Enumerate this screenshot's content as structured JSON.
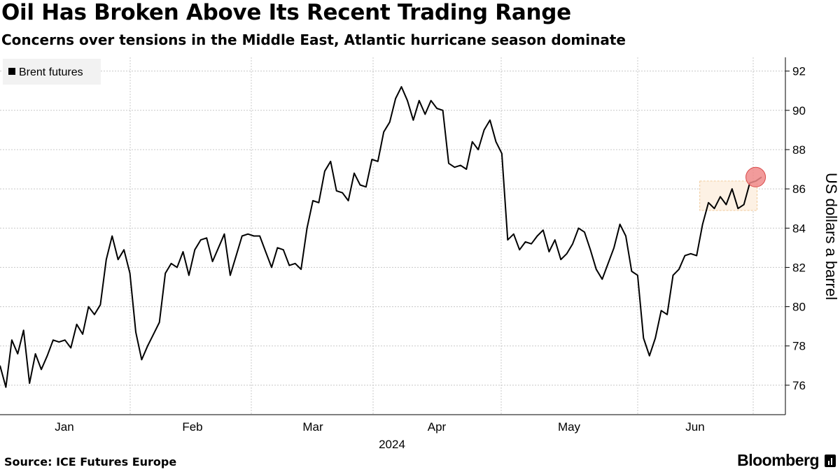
{
  "header": {
    "title": "Oil Has Broken Above Its Recent Trading Range",
    "subtitle": "Concerns over tensions in the Middle East, Atlantic hurricane season dominate"
  },
  "footer": {
    "source": "Source: ICE Futures Europe",
    "brand": "Bloomberg"
  },
  "colors": {
    "line": "#000000",
    "grid": "#c8c8c8",
    "highlight_fill": "#fdf1e4",
    "highlight_border": "#f0c99a",
    "marker_fill": "#f08a8a",
    "marker_stroke": "#d94a4a",
    "legend_bg": "#f2f2f2"
  },
  "chart_data": {
    "type": "line",
    "xlabel": "2024",
    "ylabel": "US dollars a barrel",
    "ylim": [
      74.5,
      92.7
    ],
    "y_ticks": [
      76,
      78,
      80,
      82,
      84,
      86,
      88,
      90,
      92
    ],
    "y_tick_labels": [
      "76",
      "78",
      "80",
      "82",
      "84",
      "86",
      "88",
      "90",
      "92"
    ],
    "x_tick_labels": [
      "Jan",
      "Feb",
      "Mar",
      "Apr",
      "May",
      "Jun"
    ],
    "legend": [
      {
        "label": "Brent futures",
        "color": "#000000"
      }
    ],
    "grid": true,
    "legend_position": "top-left",
    "series": [
      {
        "name": "Brent futures",
        "values": [
          77.0,
          75.9,
          78.3,
          77.6,
          78.8,
          76.1,
          77.6,
          76.8,
          77.5,
          78.3,
          78.2,
          78.3,
          77.9,
          79.1,
          78.6,
          80.0,
          79.6,
          80.1,
          82.4,
          83.6,
          82.4,
          82.9,
          81.7,
          78.7,
          77.3,
          78.0,
          78.6,
          79.2,
          81.7,
          82.2,
          82.0,
          82.8,
          81.6,
          82.9,
          83.4,
          83.5,
          82.3,
          83.0,
          83.7,
          81.6,
          82.6,
          83.6,
          83.7,
          83.6,
          83.6,
          82.8,
          82.0,
          83.0,
          82.9,
          82.1,
          82.2,
          81.9,
          84.0,
          85.4,
          85.3,
          86.9,
          87.4,
          85.9,
          85.8,
          85.4,
          86.8,
          86.2,
          86.1,
          87.5,
          87.4,
          88.9,
          89.4,
          90.6,
          91.2,
          90.5,
          89.5,
          90.5,
          89.8,
          90.5,
          90.1,
          90.0,
          87.3,
          87.1,
          87.2,
          87.0,
          88.4,
          88.0,
          89.0,
          89.5,
          88.4,
          87.8,
          83.4,
          83.7,
          82.9,
          83.3,
          83.2,
          83.6,
          83.9,
          82.8,
          83.4,
          82.4,
          82.7,
          83.2,
          84.0,
          83.8,
          82.9,
          81.9,
          81.4,
          82.2,
          83.0,
          84.2,
          83.6,
          81.8,
          81.6,
          78.4,
          77.5,
          78.4,
          79.8,
          79.6,
          81.6,
          81.9,
          82.6,
          82.7,
          82.6,
          84.2,
          85.3,
          85.0,
          85.6,
          85.2,
          86.0,
          85.0,
          85.2,
          86.3,
          86.4,
          86.6
        ]
      }
    ],
    "annotations": [
      {
        "type": "range-box",
        "y_range": [
          84.9,
          86.4
        ],
        "x_index_range": [
          119,
          128
        ]
      },
      {
        "type": "marker",
        "x_index": 128,
        "value": 86.6
      }
    ]
  }
}
